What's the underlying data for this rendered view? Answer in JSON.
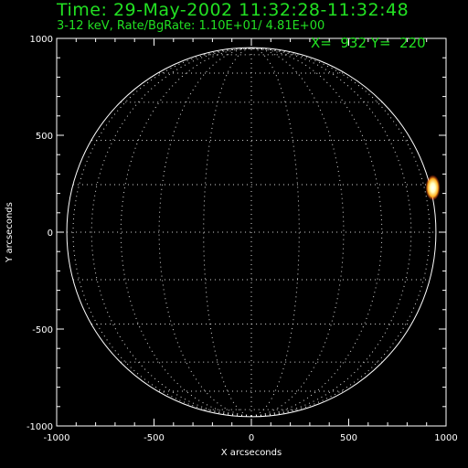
{
  "header": {
    "title": "Time: 29-May-2002 11:32:28-11:32:48",
    "subtitle": "3-12 keV, Rate/BgRate:  1.10E+01/  4.81E+00",
    "cursor_readout": "X=  932 Y=  220"
  },
  "axes": {
    "xlabel": "X arcseconds",
    "ylabel": "Y arcseconds",
    "xlim": [
      -1000,
      1000
    ],
    "ylim": [
      -1000,
      1000
    ],
    "x_ticks": [
      "-1000",
      "-500",
      "0",
      "500",
      "1000"
    ],
    "y_ticks": [
      "1000",
      "500",
      "0",
      "-500",
      "-1000"
    ]
  },
  "image": {
    "solar_limb_radius_arcsec": 948,
    "grid_spacing_deg": 15,
    "source_position_arcsec": [
      932,
      220
    ],
    "colors": {
      "background": "#000000",
      "low": "#5a1a9a",
      "mid": "#2a2aff",
      "high": "#ff2a10",
      "peak": "#ffffc0",
      "limb": "#ffffff",
      "text": "#22e022"
    }
  }
}
